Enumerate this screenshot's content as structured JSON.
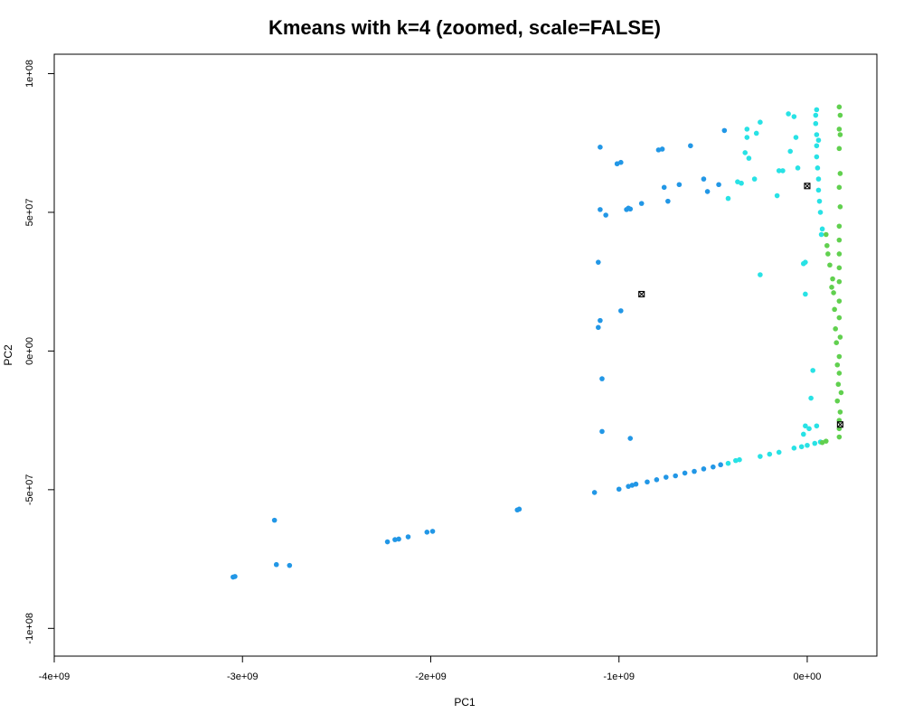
{
  "chart_data": {
    "type": "scatter",
    "title": "Kmeans with k=4 (zoomed, scale=FALSE)",
    "xlabel": "PC1",
    "ylabel": "PC2",
    "xlim": [
      -4000000000.0,
      370000000.0
    ],
    "ylim": [
      -110000000.0,
      107000000.0
    ],
    "x_ticks": [
      {
        "value": -4000000000.0,
        "label": "-4e+09"
      },
      {
        "value": -3000000000.0,
        "label": "-3e+09"
      },
      {
        "value": -2000000000.0,
        "label": "-2e+09"
      },
      {
        "value": -1000000000.0,
        "label": "-1e+09"
      },
      {
        "value": 0,
        "label": "0e+00"
      }
    ],
    "y_ticks": [
      {
        "value": -100000000.0,
        "label": "-1e+08"
      },
      {
        "value": -50000000.0,
        "label": "-5e+07"
      },
      {
        "value": 0,
        "label": "0e+00"
      },
      {
        "value": 50000000.0,
        "label": "5e+07"
      },
      {
        "value": 100000000.0,
        "label": "1e+08"
      }
    ],
    "grid": false,
    "legend": "none",
    "series": [
      {
        "color": "#2297e6",
        "points": [
          [
            -3050000000.0,
            -81500000.0
          ],
          [
            -3040000000.0,
            -81300000.0
          ],
          [
            -2830000000.0,
            -61000000.0
          ],
          [
            -2820000000.0,
            -77000000.0
          ],
          [
            -2750000000.0,
            -77300000.0
          ],
          [
            -2230000000.0,
            -68800000.0
          ],
          [
            -2190000000.0,
            -68000000.0
          ],
          [
            -2170000000.0,
            -67800000.0
          ],
          [
            -2120000000.0,
            -67000000.0
          ],
          [
            -2020000000.0,
            -65300000.0
          ],
          [
            -1990000000.0,
            -65000000.0
          ],
          [
            -1540000000.0,
            -57300000.0
          ],
          [
            -1530000000.0,
            -57000000.0
          ],
          [
            -1130000000.0,
            -51000000.0
          ],
          [
            -1000000000.0,
            -49800000.0
          ],
          [
            -950000000.0,
            -48800000.0
          ],
          [
            -930000000.0,
            -48400000.0
          ],
          [
            -910000000.0,
            -48000000.0
          ],
          [
            -850000000.0,
            -47200000.0
          ],
          [
            -800000000.0,
            -46400000.0
          ],
          [
            -750000000.0,
            -45500000.0
          ],
          [
            -700000000.0,
            -45000000.0
          ],
          [
            -650000000.0,
            -44000000.0
          ],
          [
            -600000000.0,
            -43400000.0
          ],
          [
            -550000000.0,
            -42500000.0
          ],
          [
            -500000000.0,
            -41800000.0
          ],
          [
            -460000000.0,
            -41000000.0
          ],
          [
            -1100000000.0,
            73500000.0
          ],
          [
            -1070000000.0,
            49000000.0
          ],
          [
            -1100000000.0,
            51000000.0
          ],
          [
            -1010000000.0,
            67500000.0
          ],
          [
            -990000000.0,
            68000000.0
          ],
          [
            -960000000.0,
            51000000.0
          ],
          [
            -950000000.0,
            51500000.0
          ],
          [
            -940000000.0,
            51200000.0
          ],
          [
            -880000000.0,
            53200000.0
          ],
          [
            -790000000.0,
            72500000.0
          ],
          [
            -770000000.0,
            72800000.0
          ],
          [
            -760000000.0,
            59000000.0
          ],
          [
            -740000000.0,
            54000000.0
          ],
          [
            -680000000.0,
            60000000.0
          ],
          [
            -620000000.0,
            74000000.0
          ],
          [
            -550000000.0,
            62000000.0
          ],
          [
            -530000000.0,
            57500000.0
          ],
          [
            -470000000.0,
            60000000.0
          ],
          [
            -440000000.0,
            79500000.0
          ],
          [
            -1110000000.0,
            32000000.0
          ],
          [
            -1100000000.0,
            11000000.0
          ],
          [
            -1110000000.0,
            8500000.0
          ],
          [
            -990000000.0,
            14500000.0
          ],
          [
            -1090000000.0,
            -10000000.0
          ],
          [
            -1090000000.0,
            -29000000.0
          ],
          [
            -940000000.0,
            -31500000.0
          ]
        ]
      },
      {
        "color": "#28e2e5",
        "points": [
          [
            -420000000.0,
            -40500000.0
          ],
          [
            -380000000.0,
            -39500000.0
          ],
          [
            -360000000.0,
            -39200000.0
          ],
          [
            -250000000.0,
            -38000000.0
          ],
          [
            -200000000.0,
            -37200000.0
          ],
          [
            -150000000.0,
            -36500000.0
          ],
          [
            -70000000.0,
            -35000000.0
          ],
          [
            -30000000.0,
            -34500000.0
          ],
          [
            0.0,
            -34000000.0
          ],
          [
            40000000.0,
            -33300000.0
          ],
          [
            70000000.0,
            -32800000.0
          ],
          [
            -20000000.0,
            -30000000.0
          ],
          [
            -10000000.0,
            -27000000.0
          ],
          [
            10000000.0,
            -28000000.0
          ],
          [
            50000000.0,
            -27000000.0
          ],
          [
            20000000.0,
            -17000000.0
          ],
          [
            30000000.0,
            -7000000.0
          ],
          [
            -10000000.0,
            20500000.0
          ],
          [
            -20000000.0,
            31500000.0
          ],
          [
            -10000000.0,
            32000000.0
          ],
          [
            -250000000.0,
            27500000.0
          ],
          [
            80000000.0,
            44000000.0
          ],
          [
            75000000.0,
            42000000.0
          ],
          [
            70000000.0,
            50000000.0
          ],
          [
            65000000.0,
            54000000.0
          ],
          [
            60000000.0,
            58000000.0
          ],
          [
            60000000.0,
            62000000.0
          ],
          [
            55000000.0,
            66000000.0
          ],
          [
            50000000.0,
            70000000.0
          ],
          [
            50000000.0,
            74000000.0
          ],
          [
            50000000.0,
            78000000.0
          ],
          [
            45000000.0,
            82000000.0
          ],
          [
            45000000.0,
            85000000.0
          ],
          [
            50000000.0,
            87000000.0
          ],
          [
            60000000.0,
            76000000.0
          ],
          [
            -320000000.0,
            80000000.0
          ],
          [
            -320000000.0,
            77000000.0
          ],
          [
            -330000000.0,
            71500000.0
          ],
          [
            -310000000.0,
            69500000.0
          ],
          [
            -270000000.0,
            78500000.0
          ],
          [
            -250000000.0,
            82500000.0
          ],
          [
            -370000000.0,
            61000000.0
          ],
          [
            -350000000.0,
            60500000.0
          ],
          [
            -420000000.0,
            55000000.0
          ],
          [
            -280000000.0,
            62000000.0
          ],
          [
            -150000000.0,
            65000000.0
          ],
          [
            -130000000.0,
            65000000.0
          ],
          [
            -160000000.0,
            56000000.0
          ],
          [
            -100000000.0,
            85500000.0
          ],
          [
            -70000000.0,
            84500000.0
          ],
          [
            -90000000.0,
            72000000.0
          ],
          [
            -60000000.0,
            77000000.0
          ],
          [
            -50000000.0,
            66000000.0
          ]
        ]
      },
      {
        "color": "#61d04f",
        "points": [
          [
            100000000.0,
            -32500000.0
          ],
          [
            80000000.0,
            -33000000.0
          ],
          [
            170000000.0,
            -31000000.0
          ],
          [
            170000000.0,
            -28000000.0
          ],
          [
            170000000.0,
            -25000000.0
          ],
          [
            175000000.0,
            -22000000.0
          ],
          [
            160000000.0,
            -18000000.0
          ],
          [
            180000000.0,
            -15000000.0
          ],
          [
            165000000.0,
            -12000000.0
          ],
          [
            170000000.0,
            -8000000.0
          ],
          [
            160000000.0,
            -5000000.0
          ],
          [
            170000000.0,
            -2000000.0
          ],
          [
            155000000.0,
            3000000.0
          ],
          [
            175000000.0,
            5000000.0
          ],
          [
            150000000.0,
            8000000.0
          ],
          [
            170000000.0,
            12000000.0
          ],
          [
            145000000.0,
            15000000.0
          ],
          [
            170000000.0,
            18000000.0
          ],
          [
            140000000.0,
            21000000.0
          ],
          [
            170000000.0,
            25000000.0
          ],
          [
            130000000.0,
            23000000.0
          ],
          [
            135000000.0,
            26000000.0
          ],
          [
            170000000.0,
            30000000.0
          ],
          [
            120000000.0,
            31000000.0
          ],
          [
            170000000.0,
            35000000.0
          ],
          [
            110000000.0,
            35000000.0
          ],
          [
            105000000.0,
            38000000.0
          ],
          [
            170000000.0,
            40000000.0
          ],
          [
            100000000.0,
            42000000.0
          ],
          [
            170000000.0,
            45000000.0
          ],
          [
            175000000.0,
            52000000.0
          ],
          [
            170000000.0,
            59000000.0
          ],
          [
            175000000.0,
            64000000.0
          ],
          [
            170000000.0,
            73000000.0
          ],
          [
            175000000.0,
            78000000.0
          ],
          [
            170000000.0,
            80000000.0
          ],
          [
            175000000.0,
            85000000.0
          ],
          [
            170000000.0,
            88000000.0
          ]
        ]
      }
    ],
    "centers": [
      [
        -880000000.0,
        20500000.0
      ],
      [
        0.0,
        59500000.0
      ],
      [
        175000000.0,
        -26500000.0
      ]
    ],
    "center_style": "black boxed-x"
  }
}
